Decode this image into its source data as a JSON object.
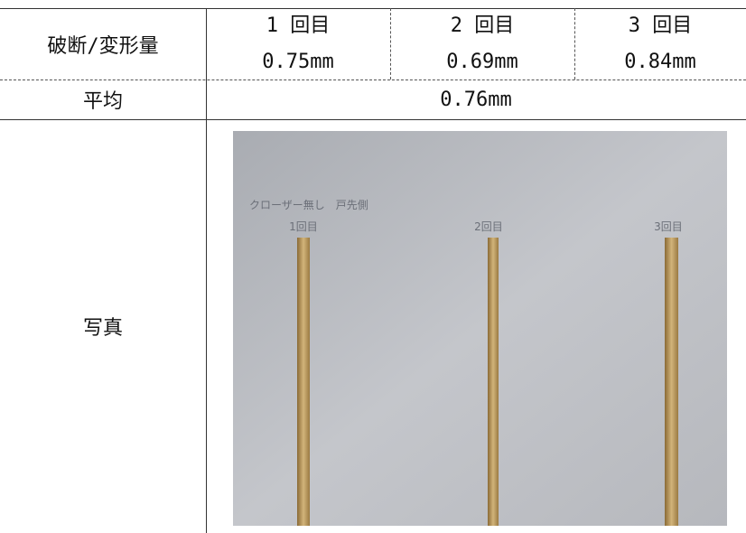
{
  "table": {
    "header": {
      "label": "破断/変形量",
      "trials": [
        {
          "label": "1 回目",
          "value": "0.75mm"
        },
        {
          "label": "2 回目",
          "value": "0.69mm"
        },
        {
          "label": "3 回目",
          "value": "0.84mm"
        }
      ]
    },
    "average": {
      "label": "平均",
      "value": "0.76mm"
    },
    "photo": {
      "label": "写真",
      "caption": "クローザー無し　戸先側",
      "marks": [
        "1回目",
        "2回目",
        "3回目"
      ]
    }
  }
}
